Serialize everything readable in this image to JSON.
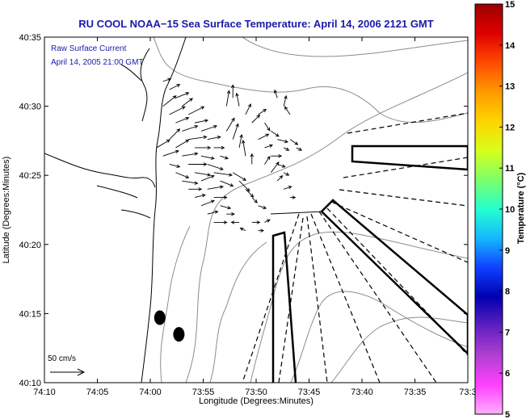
{
  "title": "RU COOL  NOAA−15  Sea Surface Temperature:  April 14, 2006 2121 GMT",
  "legend": {
    "line1": "Raw Surface Current",
    "line2": "April 14, 2005 21:00 GMT"
  },
  "scale_label": "50 cm/s",
  "x_axis": {
    "label": "Longitude (Degrees:Minutes)",
    "ticks": [
      "74:10",
      "74:05",
      "74:00",
      "73:55",
      "73:50",
      "73:45",
      "73:40",
      "73:35",
      "73:3"
    ]
  },
  "y_axis": {
    "label": "Latitude (Degrees:Minutes)",
    "ticks": [
      "40:35",
      "40:30",
      "40:25",
      "40:20",
      "40:15",
      "40:10"
    ]
  },
  "colorbar": {
    "label": "Temperature (°C)",
    "ticks": [
      "15",
      "14",
      "13",
      "12",
      "11",
      "10",
      "9",
      "8",
      "7",
      "6",
      "5"
    ],
    "colors": [
      "#9b0000",
      "#e00000",
      "#ff4a00",
      "#ff9a00",
      "#ffd400",
      "#d7ff1a",
      "#7dff6a",
      "#24ffcf",
      "#14b8ff",
      "#1040ff",
      "#0000b0",
      "#6020c0",
      "#b040d0",
      "#ff40ff",
      "#ffb0ff"
    ]
  },
  "map": {
    "coast_color": "#000000",
    "contour_color": "#8c8c8c",
    "vector_color": "#000000",
    "current_vectors": [
      [
        -73.98,
        40.53,
        3,
        1
      ],
      [
        -73.97,
        40.52,
        4,
        2
      ],
      [
        -73.96,
        40.51,
        5,
        2
      ],
      [
        -73.95,
        40.5,
        4,
        3
      ],
      [
        -73.94,
        40.49,
        6,
        3
      ],
      [
        -73.93,
        40.48,
        5,
        1
      ],
      [
        -73.92,
        40.47,
        6,
        2
      ],
      [
        -73.91,
        40.46,
        5,
        1
      ],
      [
        -73.9,
        40.45,
        4,
        0
      ],
      [
        -73.89,
        40.44,
        3,
        -1
      ],
      [
        -73.98,
        40.5,
        5,
        4
      ],
      [
        -73.97,
        40.49,
        6,
        3
      ],
      [
        -73.96,
        40.48,
        5,
        2
      ],
      [
        -73.95,
        40.47,
        6,
        2
      ],
      [
        -73.94,
        40.46,
        7,
        1
      ],
      [
        -73.93,
        40.45,
        6,
        0
      ],
      [
        -73.92,
        40.44,
        5,
        -1
      ],
      [
        -73.91,
        40.43,
        6,
        -2
      ],
      [
        -73.9,
        40.42,
        7,
        -1
      ],
      [
        -73.89,
        40.41,
        5,
        -2
      ],
      [
        -73.88,
        40.47,
        3,
        5
      ],
      [
        -73.87,
        40.46,
        2,
        6
      ],
      [
        -73.86,
        40.45,
        1,
        5
      ],
      [
        -73.85,
        40.44,
        -1,
        6
      ],
      [
        -73.84,
        40.43,
        0,
        4
      ],
      [
        -73.83,
        40.49,
        3,
        2
      ],
      [
        -73.82,
        40.48,
        2,
        -3
      ],
      [
        -73.81,
        40.47,
        3,
        -2
      ],
      [
        -73.8,
        40.46,
        4,
        -1
      ],
      [
        -73.79,
        40.45,
        2,
        -1
      ],
      [
        -73.97,
        40.43,
        4,
        -1
      ],
      [
        -73.96,
        40.42,
        5,
        -2
      ],
      [
        -73.95,
        40.41,
        6,
        -1
      ],
      [
        -73.94,
        40.4,
        5,
        0
      ],
      [
        -73.93,
        40.39,
        4,
        1
      ],
      [
        -73.92,
        40.41,
        5,
        2
      ],
      [
        -73.91,
        40.4,
        6,
        1
      ],
      [
        -73.9,
        40.39,
        5,
        0
      ],
      [
        -73.89,
        40.38,
        4,
        -1
      ],
      [
        -73.88,
        40.37,
        3,
        0
      ],
      [
        -73.87,
        40.42,
        5,
        -3
      ],
      [
        -73.86,
        40.41,
        4,
        -4
      ],
      [
        -73.85,
        40.4,
        3,
        -3
      ],
      [
        -73.84,
        40.39,
        2,
        -2
      ],
      [
        -73.83,
        40.38,
        3,
        -1
      ],
      [
        -73.82,
        40.43,
        2,
        3
      ],
      [
        -73.81,
        40.42,
        3,
        4
      ],
      [
        -73.8,
        40.41,
        2,
        2
      ],
      [
        -73.79,
        40.4,
        3,
        1
      ],
      [
        -73.78,
        40.39,
        2,
        0
      ],
      [
        -73.86,
        40.36,
        -3,
        0
      ],
      [
        -73.85,
        40.35,
        -2,
        1
      ],
      [
        -73.84,
        40.36,
        3,
        0
      ],
      [
        -73.83,
        40.35,
        2,
        0
      ],
      [
        -73.82,
        40.36,
        2,
        1
      ],
      [
        -73.99,
        40.45,
        5,
        3
      ],
      [
        -73.98,
        40.44,
        6,
        2
      ],
      [
        -73.97,
        40.46,
        4,
        4
      ],
      [
        -73.96,
        40.45,
        5,
        3
      ],
      [
        -73.95,
        40.44,
        6,
        1
      ],
      [
        -73.94,
        40.43,
        7,
        0
      ],
      [
        -73.93,
        40.42,
        6,
        -1
      ],
      [
        -73.92,
        40.38,
        5,
        2
      ],
      [
        -73.91,
        40.37,
        4,
        1
      ],
      [
        -73.9,
        40.36,
        5,
        0
      ],
      [
        -73.88,
        40.5,
        1,
        6
      ],
      [
        -73.87,
        40.51,
        0,
        5
      ],
      [
        -73.86,
        40.5,
        -1,
        5
      ],
      [
        -73.85,
        40.49,
        2,
        4
      ],
      [
        -73.84,
        40.48,
        3,
        3
      ],
      [
        -73.83,
        40.46,
        4,
        2
      ],
      [
        -73.82,
        40.45,
        3,
        1
      ],
      [
        -73.81,
        40.44,
        4,
        0
      ],
      [
        -73.8,
        40.43,
        3,
        -1
      ],
      [
        -73.79,
        40.42,
        2,
        -1
      ],
      [
        -73.78,
        40.46,
        3,
        -2
      ],
      [
        -73.77,
        40.45,
        2,
        -1
      ],
      [
        -73.78,
        40.49,
        -2,
        3
      ],
      [
        -73.79,
        40.5,
        1,
        4
      ],
      [
        -73.8,
        40.51,
        -1,
        3
      ]
    ],
    "land_dots": [
      [
        -73.985,
        40.245
      ],
      [
        -73.955,
        40.225
      ]
    ]
  }
}
